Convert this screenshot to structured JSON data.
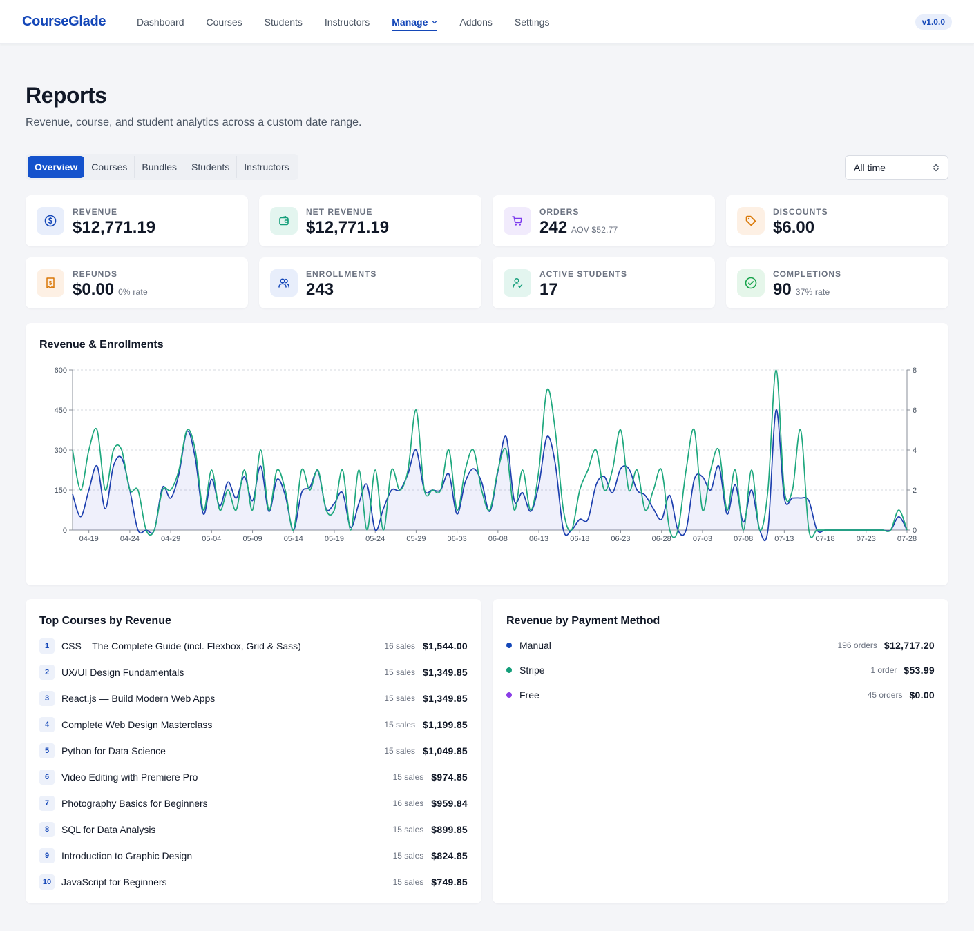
{
  "app": {
    "logo": "CourseGlade",
    "version": "v1.0.0"
  },
  "nav": [
    {
      "label": "Dashboard"
    },
    {
      "label": "Courses"
    },
    {
      "label": "Students"
    },
    {
      "label": "Instructors"
    },
    {
      "label": "Manage",
      "active": true,
      "has_dropdown": true
    },
    {
      "label": "Addons"
    },
    {
      "label": "Settings"
    }
  ],
  "header": {
    "title": "Reports",
    "subtitle": "Revenue, course, and student analytics across a custom date range."
  },
  "tabs": [
    "Overview",
    "Courses",
    "Bundles",
    "Students",
    "Instructors"
  ],
  "active_tab": "Overview",
  "range_select": {
    "value": "All time"
  },
  "stats": [
    {
      "label": "REVENUE",
      "value": "$12,771.19",
      "sub": "",
      "icon": "dollar-icon",
      "bg": "#e8eefb",
      "fg": "#1447b8"
    },
    {
      "label": "NET REVENUE",
      "value": "$12,771.19",
      "sub": "",
      "icon": "wallet-icon",
      "bg": "#e3f5ef",
      "fg": "#149e7a"
    },
    {
      "label": "ORDERS",
      "value": "242",
      "sub": "AOV $52.77",
      "icon": "cart-icon",
      "bg": "#f1ebfc",
      "fg": "#7c3aed"
    },
    {
      "label": "DISCOUNTS",
      "value": "$6.00",
      "sub": "",
      "icon": "tag-icon",
      "bg": "#fdf0e4",
      "fg": "#d97706"
    },
    {
      "label": "REFUNDS",
      "value": "$0.00",
      "sub": "0% rate",
      "icon": "receipt-icon",
      "bg": "#fdf0e4",
      "fg": "#d97706"
    },
    {
      "label": "ENROLLMENTS",
      "value": "243",
      "sub": "",
      "icon": "users-icon",
      "bg": "#e8eefb",
      "fg": "#1447b8"
    },
    {
      "label": "ACTIVE STUDENTS",
      "value": "17",
      "sub": "",
      "icon": "user-check-icon",
      "bg": "#e3f5ef",
      "fg": "#149e7a"
    },
    {
      "label": "COMPLETIONS",
      "value": "90",
      "sub": "37% rate",
      "icon": "check-circle-icon",
      "bg": "#e5f6ea",
      "fg": "#16a34a"
    }
  ],
  "chart_title": "Revenue & Enrollments",
  "chart_data": {
    "type": "line",
    "title": "Revenue & Enrollments",
    "x": [
      "04-17",
      "04-18",
      "04-19",
      "04-20",
      "04-21",
      "04-22",
      "04-23",
      "04-24",
      "04-25",
      "04-26",
      "04-27",
      "04-28",
      "04-29",
      "04-30",
      "05-01",
      "05-02",
      "05-03",
      "05-04",
      "05-05",
      "05-06",
      "05-07",
      "05-08",
      "05-09",
      "05-10",
      "05-11",
      "05-12",
      "05-13",
      "05-14",
      "05-15",
      "05-16",
      "05-17",
      "05-18",
      "05-19",
      "05-20",
      "05-21",
      "05-22",
      "05-23",
      "05-24",
      "05-25",
      "05-26",
      "05-27",
      "05-28",
      "05-29",
      "05-30",
      "05-31",
      "06-01",
      "06-02",
      "06-03",
      "06-04",
      "06-05",
      "06-06",
      "06-07",
      "06-08",
      "06-09",
      "06-10",
      "06-11",
      "06-12",
      "06-13",
      "06-14",
      "06-15",
      "06-16",
      "06-17",
      "06-18",
      "06-19",
      "06-20",
      "06-21",
      "06-22",
      "06-23",
      "06-24",
      "06-25",
      "06-26",
      "06-27",
      "06-28",
      "06-29",
      "06-30",
      "07-01",
      "07-02",
      "07-03",
      "07-04",
      "07-05",
      "07-06",
      "07-07",
      "07-08",
      "07-09",
      "07-10",
      "07-11",
      "07-12",
      "07-13",
      "07-14",
      "07-15",
      "07-16",
      "07-17",
      "07-18",
      "07-19",
      "07-20",
      "07-21",
      "07-22",
      "07-23",
      "07-24",
      "07-25",
      "07-26",
      "07-27",
      "07-28"
    ],
    "x_tick_labels": [
      "04-19",
      "04-24",
      "04-29",
      "05-04",
      "05-09",
      "05-14",
      "05-19",
      "05-24",
      "05-29",
      "06-03",
      "06-08",
      "06-13",
      "06-18",
      "06-23",
      "06-28",
      "07-03",
      "07-08",
      "07-13",
      "07-18",
      "07-23",
      "07-28"
    ],
    "series": [
      {
        "axis": "left",
        "color": "#1e40af",
        "fill": true,
        "values": [
          135,
          50,
          150,
          240,
          80,
          240,
          270,
          150,
          0,
          0,
          0,
          160,
          120,
          210,
          370,
          270,
          60,
          190,
          90,
          180,
          120,
          200,
          110,
          240,
          70,
          190,
          130,
          0,
          140,
          160,
          220,
          80,
          100,
          140,
          10,
          100,
          170,
          0,
          80,
          150,
          150,
          210,
          300,
          150,
          150,
          150,
          210,
          60,
          180,
          230,
          180,
          70,
          220,
          350,
          110,
          140,
          70,
          170,
          350,
          250,
          0,
          0,
          40,
          40,
          170,
          200,
          140,
          230,
          230,
          150,
          130,
          80,
          40,
          130,
          0,
          0,
          190,
          200,
          150,
          240,
          60,
          170,
          30,
          150,
          0,
          0,
          450,
          120,
          120,
          120,
          110,
          0,
          0,
          0,
          0,
          0,
          0,
          0,
          0,
          0,
          0,
          50,
          0
        ]
      },
      {
        "axis": "right",
        "color": "#1fa87e",
        "fill": false,
        "values": [
          4,
          2,
          4,
          5,
          2,
          4,
          4,
          2,
          2,
          0,
          0,
          2,
          2,
          3,
          5,
          4,
          1,
          3,
          1,
          2,
          1,
          3,
          1,
          4,
          1,
          3,
          2,
          0,
          3,
          2,
          3,
          1,
          1,
          3,
          0,
          3,
          0,
          3,
          0,
          3,
          2,
          3,
          6,
          2,
          2,
          2,
          4,
          1,
          3,
          4,
          2,
          1,
          3,
          4,
          1,
          3,
          1,
          3,
          7,
          5,
          1,
          0,
          2,
          3,
          4,
          2,
          3,
          5,
          2,
          3,
          1,
          2,
          3,
          0,
          0,
          3,
          5,
          1,
          3,
          4,
          1,
          3,
          0,
          3,
          0,
          2,
          8,
          2,
          2,
          5,
          0,
          0,
          0,
          0,
          0,
          0,
          0,
          0,
          0,
          0,
          0,
          1,
          0
        ]
      }
    ],
    "ylim": [
      0,
      600
    ],
    "yticks": [
      0,
      150,
      300,
      450,
      600
    ],
    "y2lim": [
      0,
      8
    ],
    "y2ticks": [
      0,
      2,
      4,
      6,
      8
    ],
    "grid": true
  },
  "top_courses": {
    "title": "Top Courses by Revenue",
    "rows": [
      {
        "rank": "1",
        "name": "CSS – The Complete Guide (incl. Flexbox, Grid & Sass)",
        "sales": "16 sales",
        "amount": "$1,544.00"
      },
      {
        "rank": "2",
        "name": "UX/UI Design Fundamentals",
        "sales": "15 sales",
        "amount": "$1,349.85"
      },
      {
        "rank": "3",
        "name": "React.js — Build Modern Web Apps",
        "sales": "15 sales",
        "amount": "$1,349.85"
      },
      {
        "rank": "4",
        "name": "Complete Web Design Masterclass",
        "sales": "15 sales",
        "amount": "$1,199.85"
      },
      {
        "rank": "5",
        "name": "Python for Data Science",
        "sales": "15 sales",
        "amount": "$1,049.85"
      },
      {
        "rank": "6",
        "name": "Video Editing with Premiere Pro",
        "sales": "15 sales",
        "amount": "$974.85"
      },
      {
        "rank": "7",
        "name": "Photography Basics for Beginners",
        "sales": "16 sales",
        "amount": "$959.84"
      },
      {
        "rank": "8",
        "name": "SQL for Data Analysis",
        "sales": "15 sales",
        "amount": "$899.85"
      },
      {
        "rank": "9",
        "name": "Introduction to Graphic Design",
        "sales": "15 sales",
        "amount": "$824.85"
      },
      {
        "rank": "10",
        "name": "JavaScript for Beginners",
        "sales": "15 sales",
        "amount": "$749.85"
      }
    ]
  },
  "payment_methods": {
    "title": "Revenue by Payment Method",
    "rows": [
      {
        "name": "Manual",
        "count": "196 orders",
        "amount": "$12,717.20",
        "color": "#1447b8"
      },
      {
        "name": "Stripe",
        "count": "1 order",
        "amount": "$53.99",
        "color": "#149e7a"
      },
      {
        "name": "Free",
        "count": "45 orders",
        "amount": "$0.00",
        "color": "#8b3ee6"
      }
    ]
  }
}
